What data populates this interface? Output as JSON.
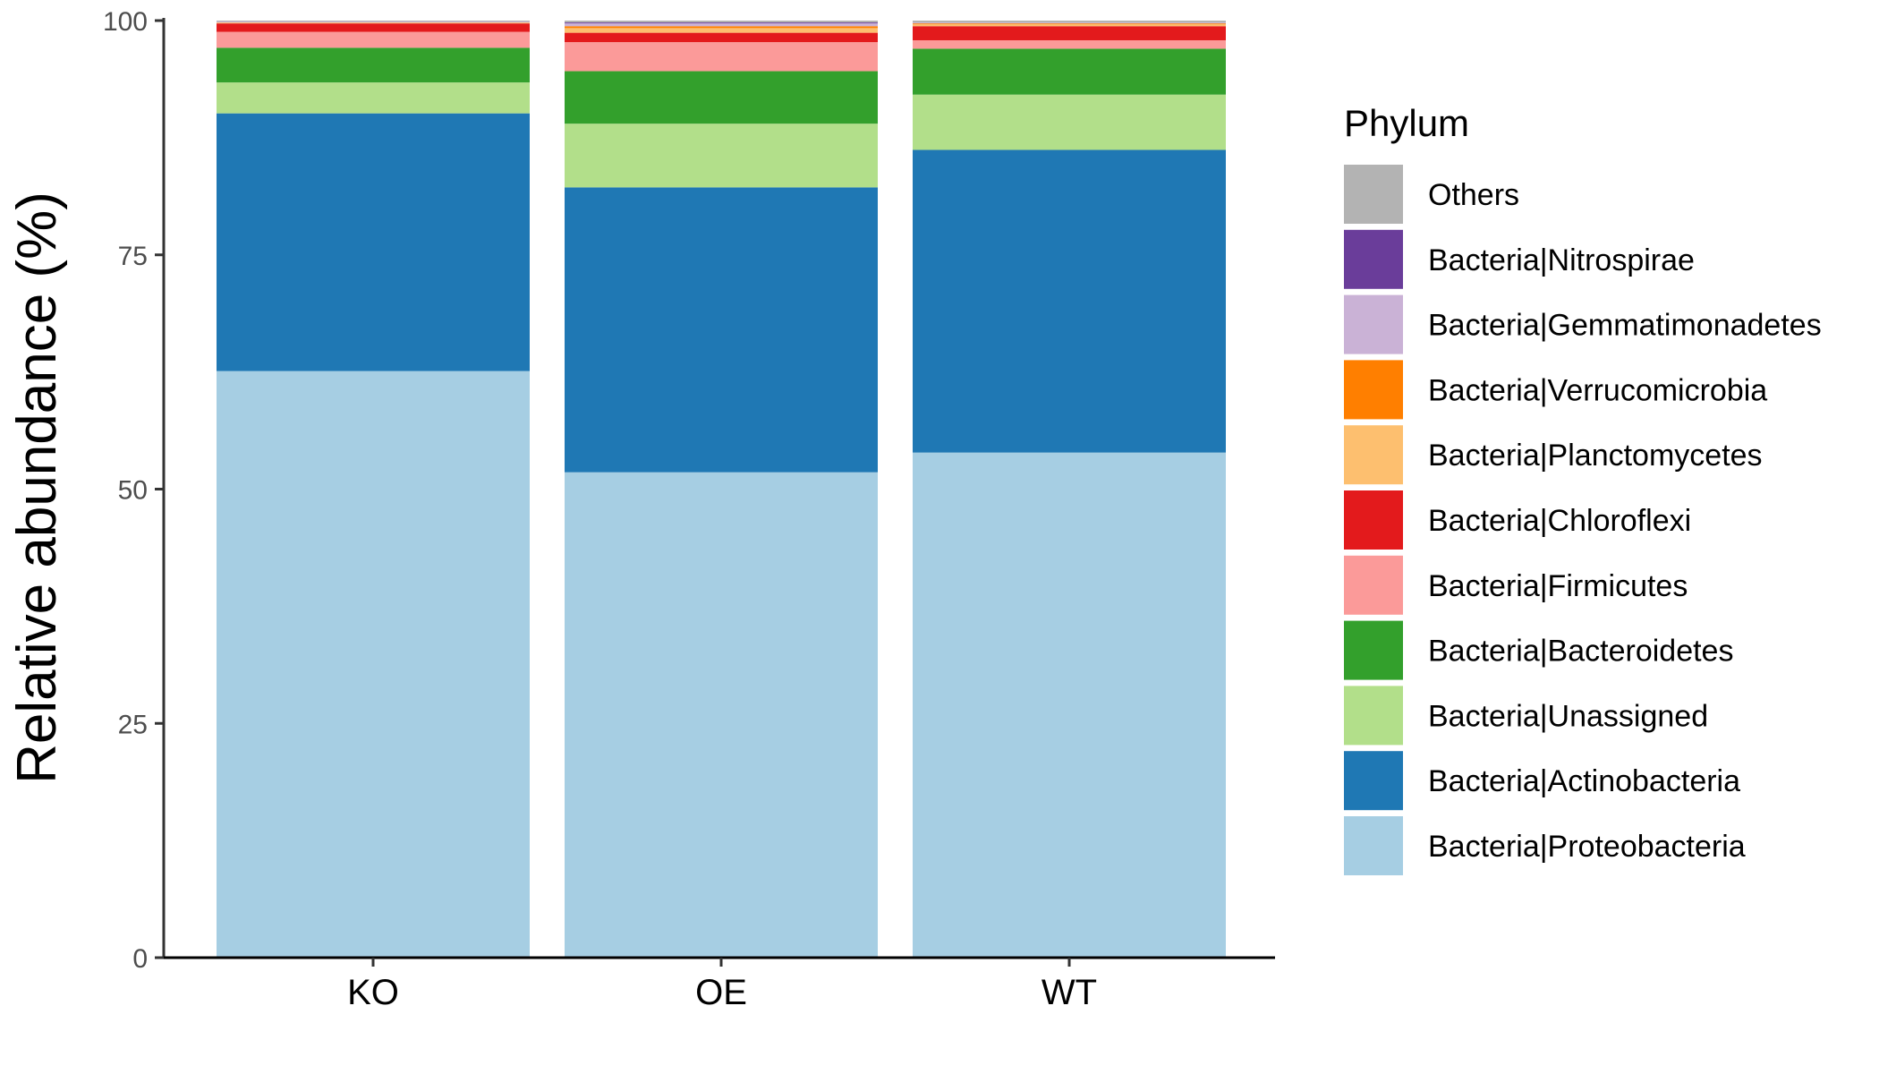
{
  "chart_data": {
    "type": "bar",
    "stacked": true,
    "categories": [
      "KO",
      "OE",
      "WT"
    ],
    "ylabel": "Relative abundance (%)",
    "xlabel": "",
    "ylim": [
      0,
      100
    ],
    "yticks": [
      0,
      25,
      50,
      75,
      100
    ],
    "grid": false,
    "legend": {
      "title": "Phylum",
      "placement": "right",
      "order": [
        "Others",
        "Bacteria|Nitrospirae",
        "Bacteria|Gemmatimonadetes",
        "Bacteria|Verrucomicrobia",
        "Bacteria|Planctomycetes",
        "Bacteria|Chloroflexi",
        "Bacteria|Firmicutes",
        "Bacteria|Bacteroidetes",
        "Bacteria|Unassigned",
        "Bacteria|Actinobacteria",
        "Bacteria|Proteobacteria"
      ]
    },
    "series": [
      {
        "name": "Bacteria|Proteobacteria",
        "color": "#a6cee3",
        "values": [
          62.6,
          51.8,
          53.9
        ]
      },
      {
        "name": "Bacteria|Actinobacteria",
        "color": "#1f78b4",
        "values": [
          27.5,
          30.4,
          32.3
        ]
      },
      {
        "name": "Bacteria|Unassigned",
        "color": "#b2df8a",
        "values": [
          3.3,
          6.8,
          5.9
        ]
      },
      {
        "name": "Bacteria|Bacteroidetes",
        "color": "#33a02c",
        "values": [
          3.7,
          5.6,
          4.9
        ]
      },
      {
        "name": "Bacteria|Firmicutes",
        "color": "#fb9a99",
        "values": [
          1.7,
          3.1,
          0.9
        ]
      },
      {
        "name": "Bacteria|Chloroflexi",
        "color": "#e31a1c",
        "values": [
          0.9,
          1.0,
          1.5
        ]
      },
      {
        "name": "Bacteria|Planctomycetes",
        "color": "#fdbf6f",
        "values": [
          0.1,
          0.5,
          0.2
        ]
      },
      {
        "name": "Bacteria|Verrucomicrobia",
        "color": "#ff7f00",
        "values": [
          0.0,
          0.2,
          0.1
        ]
      },
      {
        "name": "Bacteria|Gemmatimonadetes",
        "color": "#cab2d6",
        "values": [
          0.1,
          0.3,
          0.1
        ]
      },
      {
        "name": "Bacteria|Nitrospirae",
        "color": "#6a3d9a",
        "values": [
          0.0,
          0.1,
          0.0
        ]
      },
      {
        "name": "Others",
        "color": "#b3b3b3",
        "values": [
          0.1,
          0.2,
          0.2
        ]
      }
    ]
  }
}
